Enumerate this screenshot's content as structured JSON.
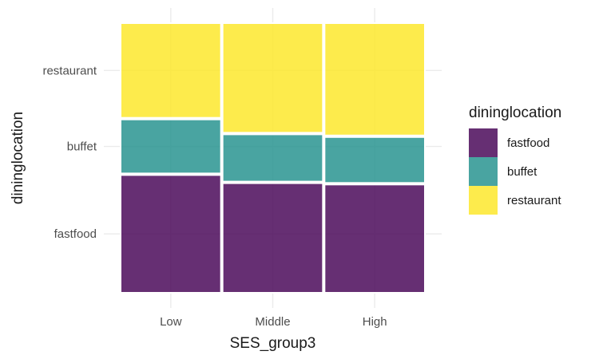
{
  "chart_data": {
    "type": "mosaic",
    "title": "",
    "xlabel": "SES_group3",
    "ylabel": "dininglocation",
    "categories": [
      "Low",
      "Middle",
      "High"
    ],
    "column_widths": [
      0.333,
      0.333,
      0.333
    ],
    "y_tick_labels": [
      "fastfood",
      "buffet",
      "restaurant"
    ],
    "legend": {
      "title": "dininglocation",
      "position": "right",
      "entries": [
        "fastfood",
        "buffet",
        "restaurant"
      ]
    },
    "series": [
      {
        "name": "fastfood",
        "color": "#440154",
        "values": [
          0.44,
          0.41,
          0.405
        ]
      },
      {
        "name": "buffet",
        "color": "#21908C",
        "values": [
          0.205,
          0.18,
          0.175
        ]
      },
      {
        "name": "restaurant",
        "color": "#FDE725",
        "values": [
          0.355,
          0.41,
          0.42
        ]
      }
    ],
    "grid": true
  }
}
